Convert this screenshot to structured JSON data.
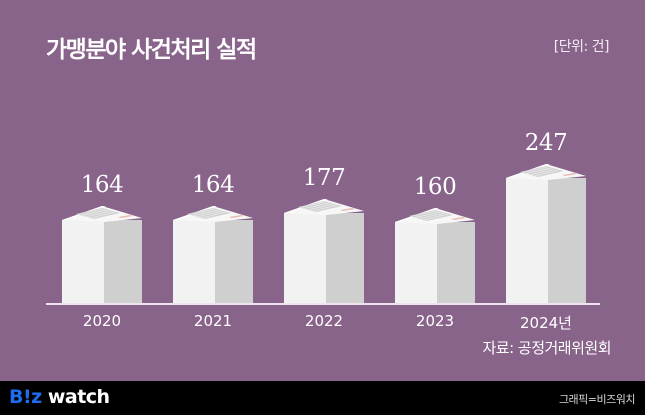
{
  "header": {
    "title": "가맹분야 사건처리 실적",
    "unit": "[단위: 건]"
  },
  "colors": {
    "background": "#88638a",
    "bar_front": "#f2f2f2",
    "bar_side": "#cfcfcf",
    "footer": "#000000",
    "logo_accent": "#1e6cf0"
  },
  "chart_data": {
    "type": "bar",
    "title": "가맹분야 사건처리 실적",
    "unit": "건",
    "categories": [
      "2020",
      "2021",
      "2022",
      "2023",
      "2024년"
    ],
    "values": [
      164,
      164,
      177,
      160,
      247
    ],
    "xlabel": "",
    "ylabel": "",
    "grid": false,
    "legend": null,
    "style": "3D box columns"
  },
  "bars": [
    {
      "label": "2020",
      "value": "164"
    },
    {
      "label": "2021",
      "value": "164"
    },
    {
      "label": "2022",
      "value": "177"
    },
    {
      "label": "2023",
      "value": "160"
    },
    {
      "label": "2024년",
      "value": "247"
    }
  ],
  "source": "자료: 공정거래위원회",
  "footer": {
    "logo_prefix": "B!z",
    "logo_suffix": " watch",
    "credit": "그래픽=비즈워치"
  }
}
